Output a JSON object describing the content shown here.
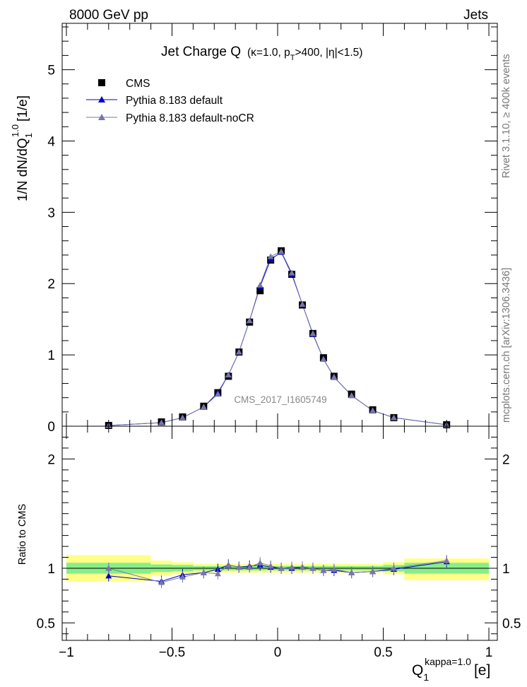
{
  "header": {
    "left": "8000 GeV pp",
    "right": "Jets"
  },
  "side_text": {
    "rivet": "Rivet 3.1.10, ≥ 400k events",
    "mcplots": "mcplots.cern.ch [arXiv:1306.3436]"
  },
  "colors": {
    "cms": "#000000",
    "default": "#0000cc",
    "nocr": "#7777aa",
    "band_outer": "#ffff88",
    "band_inner": "#88ee88"
  },
  "chart_data": [
    {
      "type": "scatter",
      "title_main": "Jet Charge Q",
      "title_sub": "(κ=1.0, p",
      "title_sub_T": "T",
      "title_sub_rest": ">400, |η|<1.5)",
      "ylabel_main": "1/N dN/dQ",
      "ylabel_sub": "1",
      "ylabel_sup": "1.0",
      "ylabel_unit": "[1/e]",
      "watermark": "CMS_2017_I1605749",
      "xlim": [
        -1.02,
        1.04
      ],
      "ylim": [
        0,
        5.65
      ],
      "yticks": [
        0,
        1,
        2,
        3,
        4,
        5
      ],
      "ytick_labels": [
        "0",
        "1",
        "2",
        "3",
        "4",
        "5"
      ],
      "legend": [
        "CMS",
        "Pythia 8.183 default",
        "Pythia 8.183 default-noCR"
      ],
      "x": [
        -0.8,
        -0.55,
        -0.45,
        -0.35,
        -0.283,
        -0.233,
        -0.183,
        -0.133,
        -0.083,
        -0.033,
        0.017,
        0.067,
        0.117,
        0.167,
        0.217,
        0.267,
        0.35,
        0.45,
        0.55,
        0.8
      ],
      "series": [
        {
          "name": "CMS",
          "values": [
            0.01,
            0.06,
            0.13,
            0.28,
            0.47,
            0.7,
            1.04,
            1.46,
            1.9,
            2.33,
            2.46,
            2.13,
            1.7,
            1.3,
            0.96,
            0.7,
            0.45,
            0.23,
            0.12,
            0.02
          ]
        },
        {
          "name": "Pythia 8.183 default",
          "values": [
            0.01,
            0.05,
            0.12,
            0.27,
            0.47,
            0.72,
            1.04,
            1.48,
            1.96,
            2.34,
            2.44,
            2.13,
            1.71,
            1.29,
            0.94,
            0.69,
            0.43,
            0.22,
            0.12,
            0.02
          ]
        },
        {
          "name": "Pythia 8.183 default-noCR",
          "values": [
            0.01,
            0.05,
            0.12,
            0.27,
            0.45,
            0.72,
            1.04,
            1.48,
            1.98,
            2.38,
            2.45,
            2.15,
            1.71,
            1.3,
            0.94,
            0.69,
            0.43,
            0.22,
            0.12,
            0.02
          ]
        }
      ]
    },
    {
      "type": "line",
      "ylabel": "Ratio to CMS",
      "xlabel_main": "Q",
      "xlabel_sub": "1",
      "xlabel_sup": "kappa=1.0",
      "xlabel_unit": "[e]",
      "xlim": [
        -1.02,
        1.04
      ],
      "ylim": [
        0.34,
        2.3
      ],
      "xticks": [
        -1,
        -0.5,
        0,
        0.5,
        1
      ],
      "xtick_labels": [
        "−1",
        "−0.5",
        "0",
        "0.5",
        "1"
      ],
      "yticks": [
        0.5,
        1,
        2
      ],
      "ytick_labels": [
        "0.5",
        "1",
        "2"
      ],
      "x": [
        -0.8,
        -0.55,
        -0.45,
        -0.35,
        -0.283,
        -0.233,
        -0.183,
        -0.133,
        -0.083,
        -0.033,
        0.017,
        0.067,
        0.117,
        0.167,
        0.217,
        0.267,
        0.35,
        0.45,
        0.55,
        0.8
      ],
      "bands": [
        {
          "x0": -1.0,
          "x1": -0.6,
          "outer": [
            0.88,
            1.12
          ],
          "inner": [
            0.95,
            1.05
          ]
        },
        {
          "x0": -0.6,
          "x1": -0.5,
          "outer": [
            0.93,
            1.07
          ],
          "inner": [
            0.965,
            1.035
          ]
        },
        {
          "x0": -0.5,
          "x1": -0.4,
          "outer": [
            0.945,
            1.055
          ],
          "inner": [
            0.97,
            1.03
          ]
        },
        {
          "x0": -0.4,
          "x1": 0.5,
          "outer": [
            0.96,
            1.04
          ],
          "inner": [
            0.98,
            1.02
          ]
        },
        {
          "x0": 0.5,
          "x1": 0.6,
          "outer": [
            0.945,
            1.055
          ],
          "inner": [
            0.97,
            1.03
          ]
        },
        {
          "x0": 0.6,
          "x1": 1.0,
          "outer": [
            0.89,
            1.09
          ],
          "inner": [
            0.95,
            1.05
          ]
        }
      ],
      "series": [
        {
          "name": "Pythia 8.183 default",
          "values": [
            0.93,
            0.88,
            0.94,
            0.96,
            0.99,
            1.03,
            1.01,
            1.02,
            1.03,
            1.01,
            1.0,
            1.0,
            1.01,
            1.0,
            0.98,
            0.98,
            0.96,
            0.97,
            0.99,
            1.06
          ]
        },
        {
          "name": "Pythia 8.183 default-noCR",
          "values": [
            1.0,
            0.87,
            0.92,
            0.96,
            0.95,
            1.03,
            1.01,
            1.01,
            1.05,
            1.02,
            1.0,
            1.01,
            1.01,
            1.0,
            0.98,
            0.99,
            0.96,
            0.97,
            1.0,
            1.07
          ]
        }
      ]
    }
  ]
}
